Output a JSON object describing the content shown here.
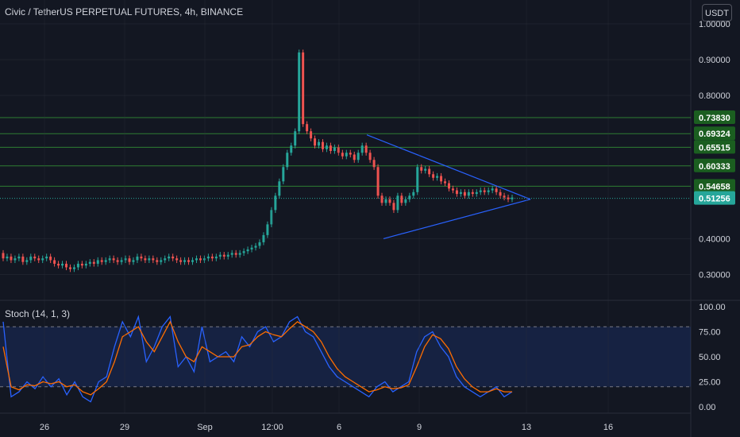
{
  "header": {
    "title": "Civic / TetherUS PERPETUAL FUTURES, 4h, BINANCE",
    "currency": "USDT"
  },
  "stoch": {
    "label": "Stoch (14, 1, 3)"
  },
  "colors": {
    "background": "#131722",
    "up": "#26a69a",
    "down": "#ef5350",
    "grid": "#2a2e39",
    "text": "#d1d4dc",
    "trendline": "#2962ff",
    "hline": "#2e7d32",
    "hline_label_bg": "#1b5e20",
    "last_price_bg": "#26a69a",
    "stoch_k": "#2962ff",
    "stoch_d": "#ff6d00",
    "stoch_band": "rgba(41,98,255,0.15)"
  },
  "chart_data": {
    "type": "candlestick",
    "price_axis": {
      "ticks": [
        "1.00000",
        "0.90000",
        "0.80000",
        "0.40000",
        "0.30000"
      ],
      "ylim": [
        0.25,
        1.0
      ]
    },
    "time_axis": {
      "ticks": [
        "26",
        "29",
        "Sep",
        "12:00",
        "6",
        "9",
        "13",
        "16"
      ]
    },
    "horizontal_levels": [
      {
        "value": 0.7383,
        "label": "0.73830"
      },
      {
        "value": 0.69324,
        "label": "0.69324"
      },
      {
        "value": 0.65515,
        "label": "0.65515"
      },
      {
        "value": 0.60333,
        "label": "0.60333"
      },
      {
        "value": 0.54658,
        "label": "0.54658"
      }
    ],
    "last_price": {
      "value": 0.51256,
      "label": "0.51256"
    },
    "triangle_pattern": {
      "upper_line": [
        [
          0.3,
          0.69
        ],
        [
          0.43,
          0.51
        ]
      ],
      "lower_line": [
        [
          0.3,
          0.4
        ],
        [
          0.43,
          0.51
        ]
      ]
    },
    "candles": [
      [
        0.36,
        0.345
      ],
      [
        0.345,
        0.35
      ],
      [
        0.35,
        0.34
      ],
      [
        0.34,
        0.345
      ],
      [
        0.345,
        0.35
      ],
      [
        0.35,
        0.335
      ],
      [
        0.335,
        0.34
      ],
      [
        0.34,
        0.35
      ],
      [
        0.35,
        0.345
      ],
      [
        0.345,
        0.34
      ],
      [
        0.34,
        0.345
      ],
      [
        0.345,
        0.35
      ],
      [
        0.35,
        0.34
      ],
      [
        0.34,
        0.33
      ],
      [
        0.33,
        0.325
      ],
      [
        0.325,
        0.33
      ],
      [
        0.33,
        0.32
      ],
      [
        0.32,
        0.315
      ],
      [
        0.315,
        0.32
      ],
      [
        0.32,
        0.33
      ],
      [
        0.33,
        0.325
      ],
      [
        0.325,
        0.33
      ],
      [
        0.33,
        0.335
      ],
      [
        0.335,
        0.33
      ],
      [
        0.33,
        0.34
      ],
      [
        0.34,
        0.335
      ],
      [
        0.335,
        0.34
      ],
      [
        0.34,
        0.345
      ],
      [
        0.345,
        0.34
      ],
      [
        0.34,
        0.335
      ],
      [
        0.335,
        0.34
      ],
      [
        0.34,
        0.345
      ],
      [
        0.345,
        0.335
      ],
      [
        0.335,
        0.34
      ],
      [
        0.34,
        0.35
      ],
      [
        0.35,
        0.345
      ],
      [
        0.345,
        0.34
      ],
      [
        0.34,
        0.345
      ],
      [
        0.345,
        0.34
      ],
      [
        0.34,
        0.335
      ],
      [
        0.335,
        0.34
      ],
      [
        0.34,
        0.345
      ],
      [
        0.345,
        0.35
      ],
      [
        0.35,
        0.345
      ],
      [
        0.345,
        0.34
      ],
      [
        0.34,
        0.335
      ],
      [
        0.335,
        0.34
      ],
      [
        0.34,
        0.335
      ],
      [
        0.335,
        0.34
      ],
      [
        0.34,
        0.345
      ],
      [
        0.345,
        0.34
      ],
      [
        0.34,
        0.345
      ],
      [
        0.345,
        0.35
      ],
      [
        0.35,
        0.345
      ],
      [
        0.345,
        0.35
      ],
      [
        0.35,
        0.355
      ],
      [
        0.355,
        0.35
      ],
      [
        0.35,
        0.355
      ],
      [
        0.355,
        0.36
      ],
      [
        0.36,
        0.355
      ],
      [
        0.355,
        0.36
      ],
      [
        0.36,
        0.365
      ],
      [
        0.365,
        0.37
      ],
      [
        0.37,
        0.375
      ],
      [
        0.375,
        0.38
      ],
      [
        0.38,
        0.39
      ],
      [
        0.39,
        0.41
      ],
      [
        0.41,
        0.44
      ],
      [
        0.44,
        0.48
      ],
      [
        0.48,
        0.52
      ],
      [
        0.52,
        0.56
      ],
      [
        0.56,
        0.6
      ],
      [
        0.6,
        0.64
      ],
      [
        0.64,
        0.66
      ],
      [
        0.66,
        0.7
      ],
      [
        0.7,
        0.92
      ],
      [
        0.92,
        0.72
      ],
      [
        0.72,
        0.7
      ],
      [
        0.7,
        0.68
      ],
      [
        0.68,
        0.66
      ],
      [
        0.66,
        0.67
      ],
      [
        0.67,
        0.65
      ],
      [
        0.65,
        0.66
      ],
      [
        0.66,
        0.645
      ],
      [
        0.645,
        0.655
      ],
      [
        0.655,
        0.64
      ],
      [
        0.64,
        0.63
      ],
      [
        0.63,
        0.64
      ],
      [
        0.64,
        0.635
      ],
      [
        0.635,
        0.62
      ],
      [
        0.62,
        0.64
      ],
      [
        0.64,
        0.66
      ],
      [
        0.66,
        0.64
      ],
      [
        0.64,
        0.62
      ],
      [
        0.62,
        0.6
      ],
      [
        0.6,
        0.52
      ],
      [
        0.52,
        0.5
      ],
      [
        0.5,
        0.51
      ],
      [
        0.51,
        0.5
      ],
      [
        0.5,
        0.48
      ],
      [
        0.48,
        0.52
      ],
      [
        0.52,
        0.5
      ],
      [
        0.5,
        0.51
      ],
      [
        0.51,
        0.52
      ],
      [
        0.52,
        0.53
      ],
      [
        0.53,
        0.6
      ],
      [
        0.6,
        0.59
      ],
      [
        0.59,
        0.595
      ],
      [
        0.595,
        0.58
      ],
      [
        0.58,
        0.57
      ],
      [
        0.57,
        0.575
      ],
      [
        0.575,
        0.56
      ],
      [
        0.56,
        0.555
      ],
      [
        0.555,
        0.54
      ],
      [
        0.54,
        0.535
      ],
      [
        0.535,
        0.525
      ],
      [
        0.525,
        0.53
      ],
      [
        0.53,
        0.52
      ],
      [
        0.52,
        0.53
      ],
      [
        0.53,
        0.525
      ],
      [
        0.525,
        0.53
      ],
      [
        0.53,
        0.535
      ],
      [
        0.535,
        0.53
      ],
      [
        0.53,
        0.535
      ],
      [
        0.535,
        0.54
      ],
      [
        0.54,
        0.53
      ],
      [
        0.53,
        0.52
      ],
      [
        0.52,
        0.515
      ],
      [
        0.515,
        0.51
      ],
      [
        0.51,
        0.515
      ]
    ],
    "stoch_axis": {
      "ticks": [
        "100.00",
        "75.00",
        "50.00",
        "25.00",
        "0.00"
      ],
      "ylim": [
        0,
        100
      ],
      "bands": [
        80,
        20
      ]
    },
    "stoch_k": [
      85,
      10,
      15,
      25,
      18,
      30,
      20,
      28,
      12,
      25,
      10,
      5,
      25,
      30,
      60,
      85,
      70,
      90,
      45,
      60,
      80,
      90,
      40,
      50,
      35,
      80,
      45,
      50,
      55,
      45,
      70,
      60,
      75,
      80,
      65,
      70,
      85,
      90,
      75,
      70,
      55,
      40,
      30,
      25,
      20,
      15,
      10,
      20,
      25,
      15,
      20,
      25,
      55,
      70,
      75,
      60,
      50,
      30,
      20,
      15,
      10,
      15,
      20,
      10,
      15
    ],
    "stoch_d": [
      60,
      20,
      17,
      22,
      21,
      25,
      23,
      25,
      20,
      22,
      15,
      12,
      18,
      25,
      45,
      70,
      75,
      80,
      65,
      55,
      70,
      85,
      65,
      50,
      45,
      60,
      55,
      50,
      50,
      50,
      60,
      62,
      70,
      75,
      72,
      70,
      78,
      85,
      80,
      75,
      65,
      50,
      38,
      30,
      25,
      20,
      15,
      17,
      20,
      18,
      19,
      22,
      40,
      60,
      72,
      68,
      58,
      40,
      28,
      20,
      15,
      15,
      18,
      15,
      15
    ]
  }
}
